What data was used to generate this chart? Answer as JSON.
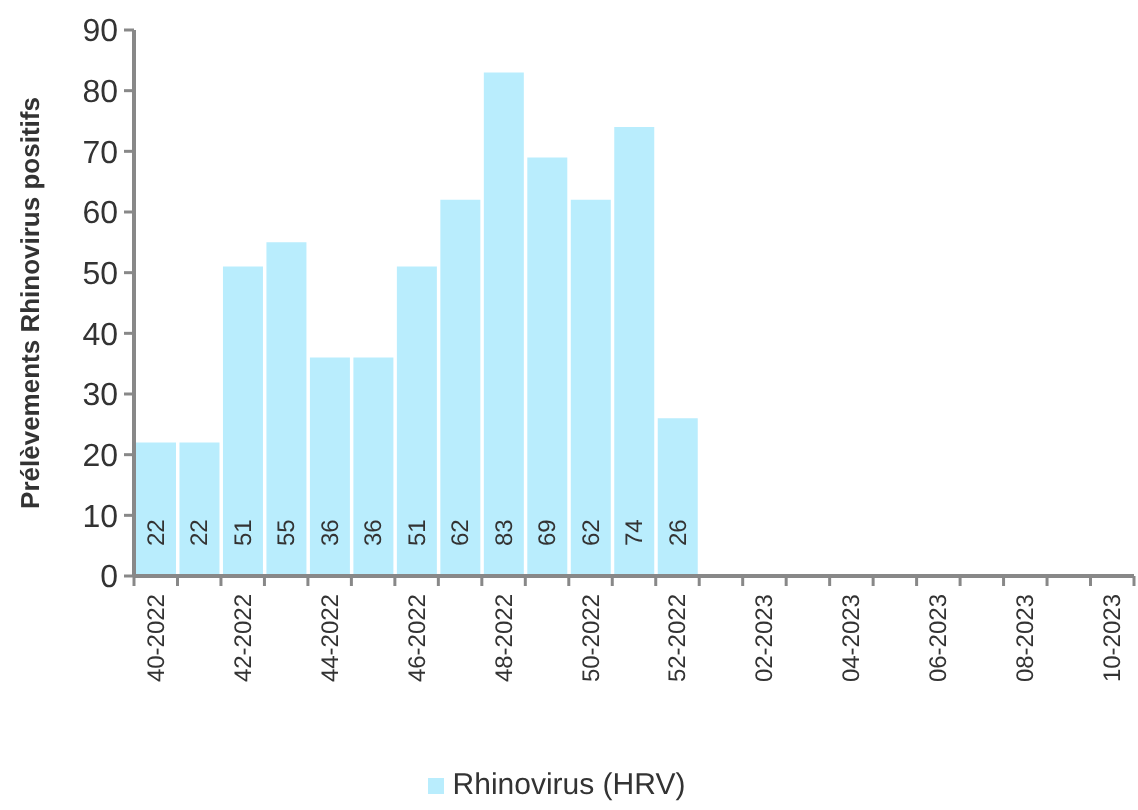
{
  "chart_data": {
    "type": "bar",
    "ylabel": "Prélèvements Rhinovirus positifs",
    "categories": [
      "40-2022",
      null,
      "42-2022",
      null,
      "44-2022",
      null,
      "46-2022",
      null,
      "48-2022",
      null,
      "50-2022",
      null,
      "52-2022",
      null,
      "02-2023",
      null,
      "04-2023",
      null,
      "06-2023",
      null,
      "08-2023",
      null,
      "10-2023"
    ],
    "series": [
      {
        "name": "Rhinovirus (HRV)",
        "color": "#b9edfd",
        "values": [
          22,
          22,
          51,
          55,
          36,
          36,
          51,
          62,
          83,
          69,
          62,
          74,
          26,
          null,
          null,
          null,
          null,
          null,
          null,
          null,
          null,
          null,
          null
        ]
      }
    ],
    "ylim": [
      0,
      90
    ],
    "yticks": [
      0,
      10,
      20,
      30,
      40,
      50,
      60,
      70,
      80,
      90
    ],
    "data_labels": true,
    "legend": "bottom"
  }
}
